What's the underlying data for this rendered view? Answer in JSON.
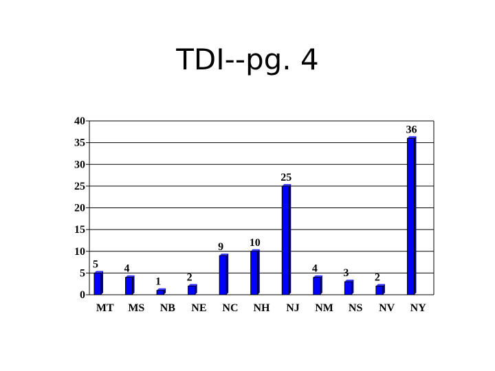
{
  "slide": {
    "title": "TDI--pg. 4"
  },
  "chart_data": {
    "type": "bar",
    "title": "",
    "xlabel": "",
    "ylabel": "",
    "categories": [
      "MT",
      "MS",
      "NB",
      "NE",
      "NC",
      "NH",
      "NJ",
      "NM",
      "NS",
      "NV",
      "NY"
    ],
    "values": [
      5,
      4,
      1,
      2,
      9,
      10,
      25,
      4,
      3,
      2,
      36
    ],
    "ylim": [
      0,
      40
    ],
    "yticks": [
      0,
      5,
      10,
      15,
      20,
      25,
      30,
      35,
      40
    ],
    "grid": true,
    "legend": "none",
    "colors": {
      "bar_front": "#0000ff",
      "bar_side": "#000080",
      "bar_top": "#3a3aff",
      "grid": "#000000",
      "axis": "#000000"
    }
  }
}
